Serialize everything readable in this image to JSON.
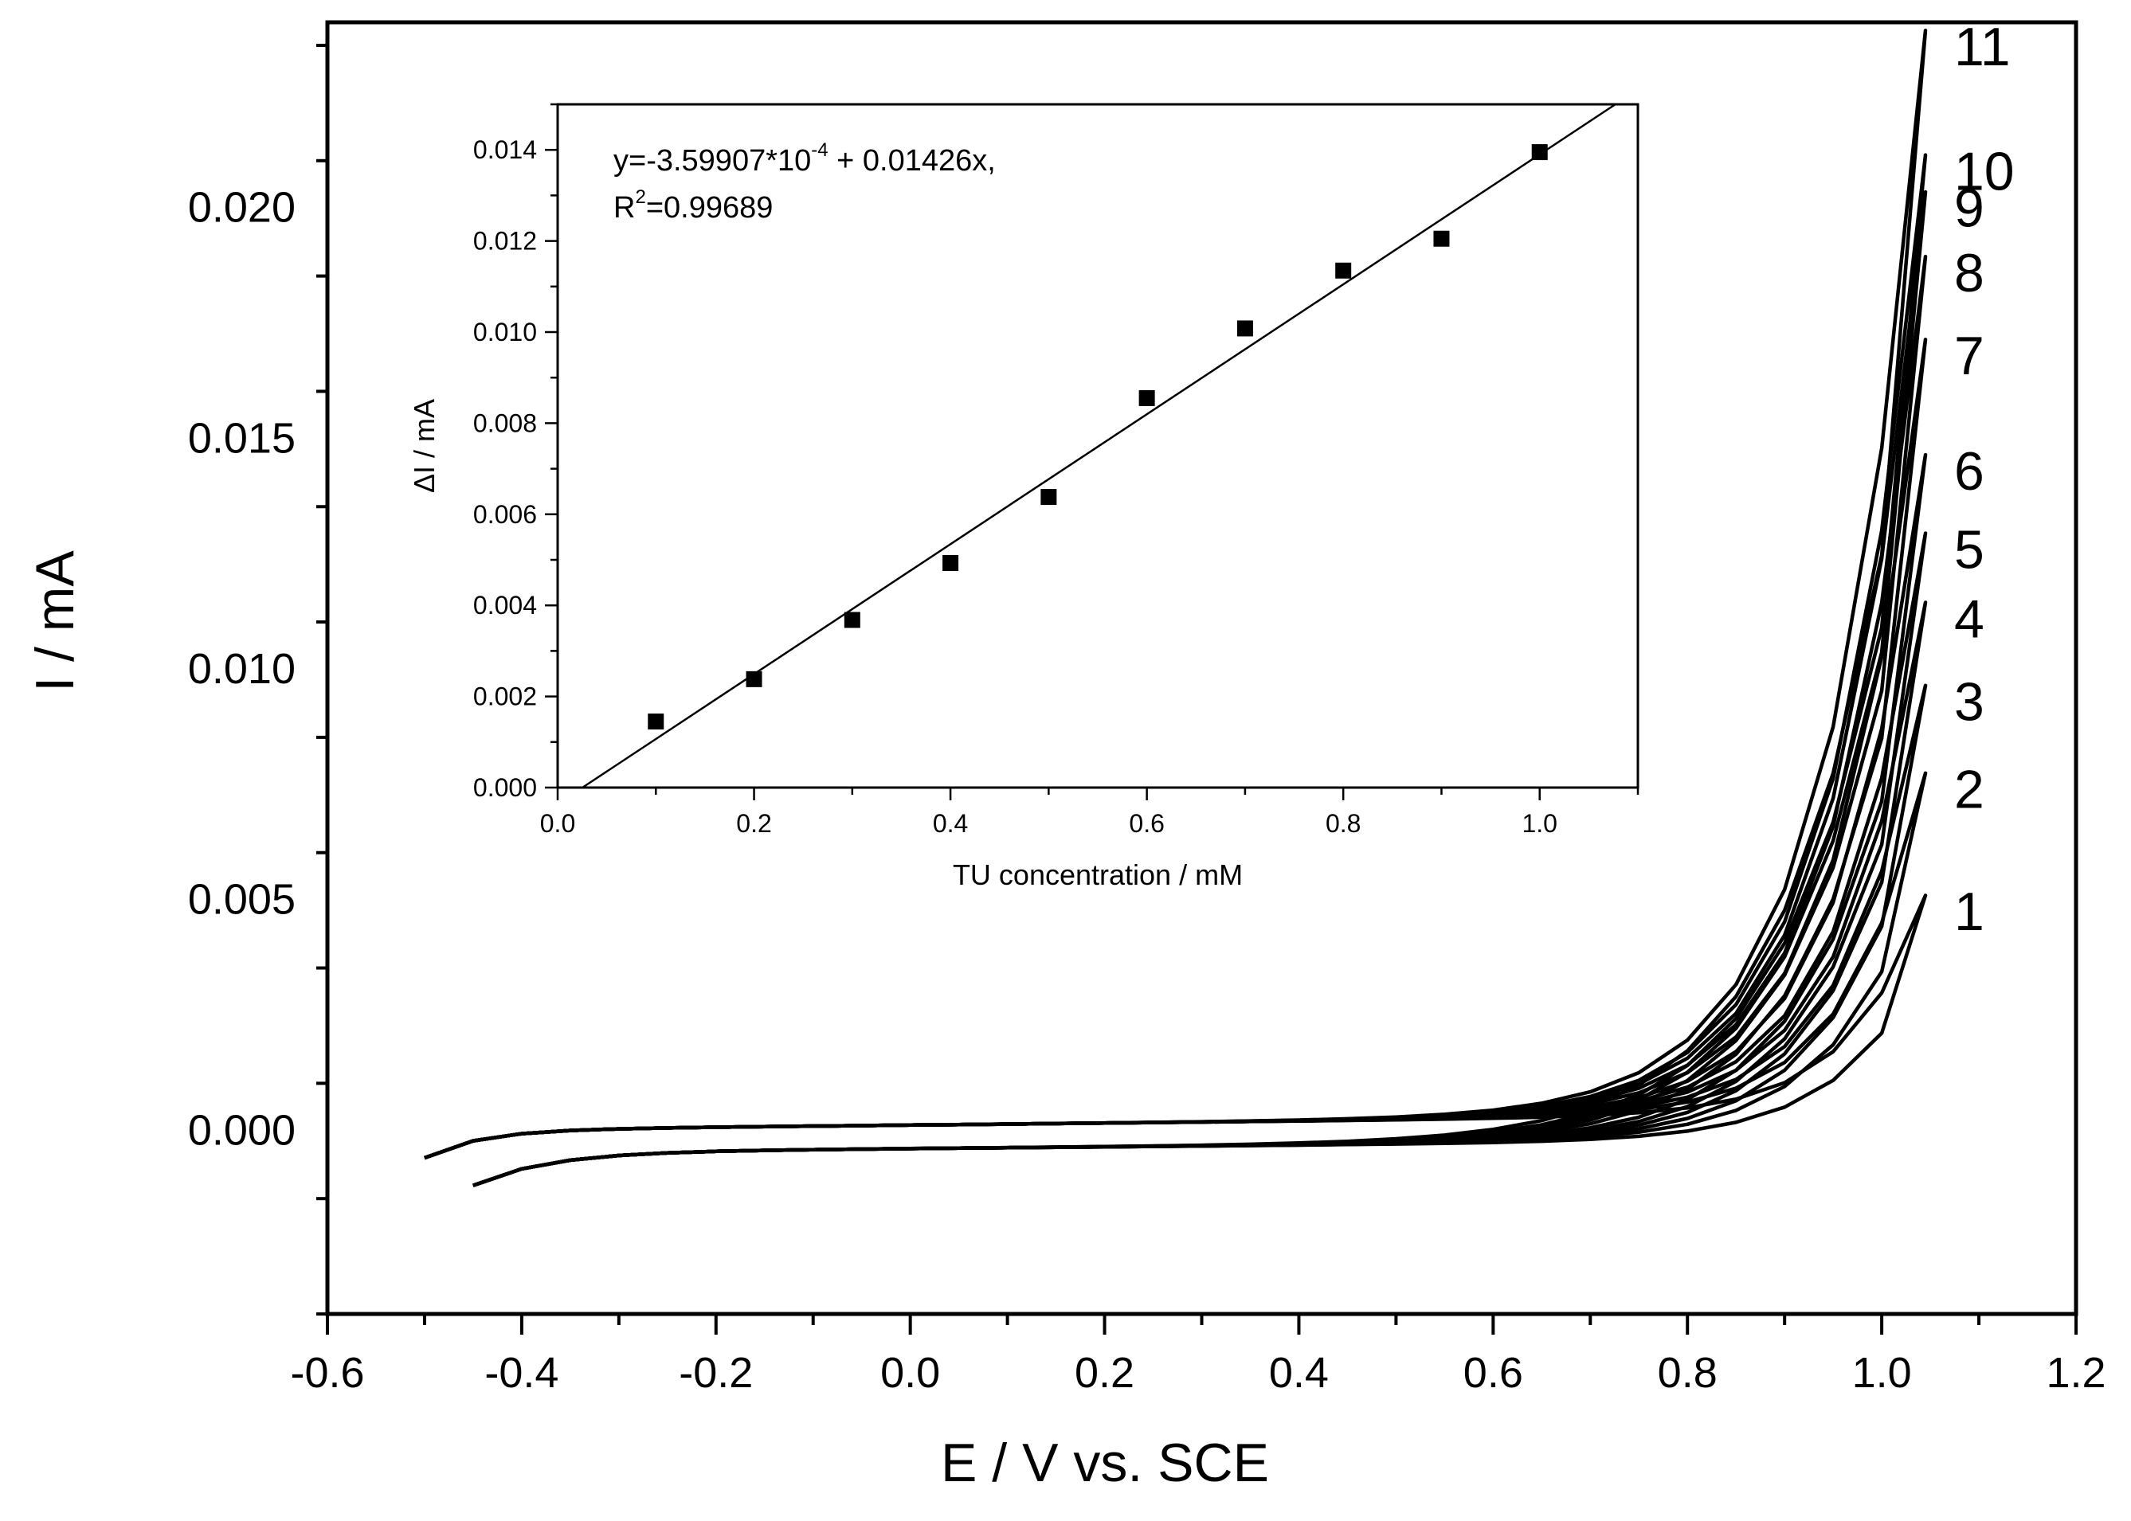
{
  "chart_data": [
    {
      "type": "line",
      "xlabel": "E / V vs. SCE",
      "ylabel": "I / mA",
      "xlim": [
        -0.6,
        1.2
      ],
      "ylim": [
        -0.004,
        0.024
      ],
      "x_ticks": [
        -0.6,
        -0.4,
        -0.2,
        0.0,
        0.2,
        0.4,
        0.6,
        0.8,
        1.0,
        1.2
      ],
      "x_tick_labels": [
        "-0.6",
        "-0.4",
        "-0.2",
        "0.0",
        "0.2",
        "0.4",
        "0.6",
        "0.8",
        "1.0",
        "1.2"
      ],
      "y_ticks": [
        0.0,
        0.005,
        0.01,
        0.015,
        0.02
      ],
      "y_tick_labels": [
        "0.000",
        "0.005",
        "0.010",
        "0.015",
        "0.020"
      ],
      "grid": false,
      "legend": "none",
      "line_color": "#000000",
      "series": [
        {
          "label": "1",
          "peak": 0.00475
        },
        {
          "label": "2",
          "peak": 0.0074
        },
        {
          "label": "3",
          "peak": 0.0093
        },
        {
          "label": "4",
          "peak": 0.0111
        },
        {
          "label": "5",
          "peak": 0.0126
        },
        {
          "label": "6",
          "peak": 0.0143
        },
        {
          "label": "7",
          "peak": 0.0168
        },
        {
          "label": "8",
          "peak": 0.0186
        },
        {
          "label": "9",
          "peak": 0.02
        },
        {
          "label": "10",
          "peak": 0.0208
        },
        {
          "label": "11",
          "peak": 0.0235
        }
      ]
    },
    {
      "type": "scatter",
      "xlabel": "TU concentration / mM",
      "ylabel": "ΔI / mA",
      "xlim": [
        0.0,
        1.1
      ],
      "ylim": [
        0.0,
        0.015
      ],
      "x_ticks": [
        0.0,
        0.2,
        0.4,
        0.6,
        0.8,
        1.0
      ],
      "x_tick_labels": [
        "0.0",
        "0.2",
        "0.4",
        "0.6",
        "0.8",
        "1.0"
      ],
      "y_ticks": [
        0.0,
        0.002,
        0.004,
        0.006,
        0.008,
        0.01,
        0.012,
        0.014
      ],
      "y_tick_labels": [
        "0.000",
        "0.002",
        "0.004",
        "0.006",
        "0.008",
        "0.010",
        "0.012",
        "0.014"
      ],
      "grid": false,
      "x": [
        0.1,
        0.2,
        0.3,
        0.4,
        0.5,
        0.6,
        0.7,
        0.8,
        0.9,
        1.0
      ],
      "y": [
        0.00145,
        0.00238,
        0.00368,
        0.00493,
        0.00638,
        0.00855,
        0.01008,
        0.01135,
        0.01205,
        0.01395
      ],
      "fit": {
        "intercept": -0.000359907,
        "slope": 0.01426
      },
      "equation_parts": [
        "y=-3.59907*10",
        "-4",
        " + 0.01426x,"
      ],
      "r2_parts": [
        "R",
        "2",
        "=0.99689"
      ]
    }
  ]
}
